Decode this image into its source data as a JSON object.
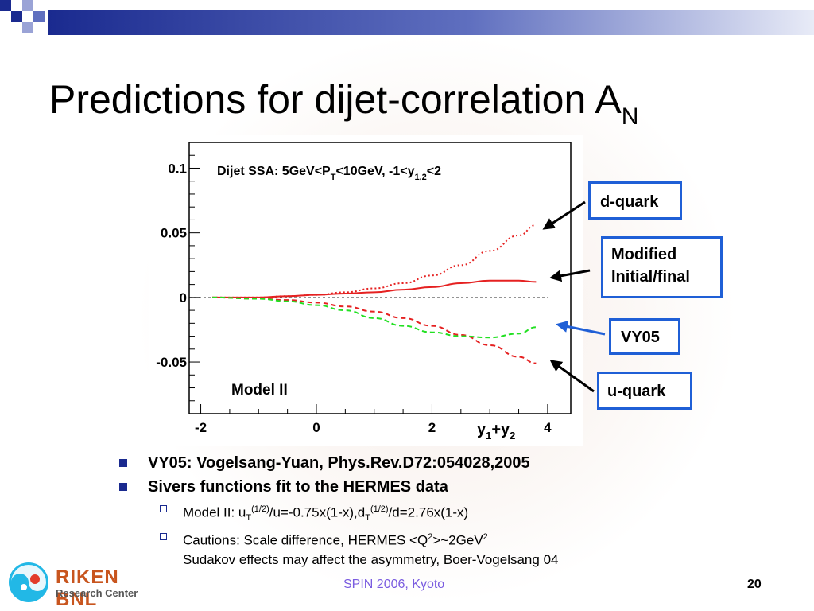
{
  "slide": {
    "title_main": "Predictions for dijet-correlation A",
    "title_sub": "N",
    "footer_center": "SPIN 2006, Kyoto",
    "page_number": "20",
    "logo": {
      "line1": "RIKEN BNL",
      "line2": "Research Center"
    }
  },
  "callouts": {
    "d_quark": "d-quark",
    "modified_line1": "Modified",
    "modified_line2": "Initial/final",
    "vy05": "VY05",
    "u_quark": "u-quark"
  },
  "bullets": [
    "VY05: Vogelsang-Yuan, Phys.Rev.D72:054028,2005",
    "Sivers functions fit to the HERMES data"
  ],
  "subbullets": {
    "model": {
      "prefix": "Model II: u",
      "sub1": "T",
      "sup1": "(1/2)",
      "middle": "/u=-0.75x(1-x),d",
      "sub2": "T",
      "sup2": "(1/2)",
      "suffix": "/d=2.76x(1-x)"
    },
    "cautions": {
      "prefix": "Cautions: Scale difference, HERMES <Q",
      "sup": "2",
      "middle": ">~2GeV",
      "sup2": "2",
      "line2": "Sudakov effects may affect the asymmetry, Boer-Vogelsang 04"
    }
  },
  "colors": {
    "accent": "#1a2a8f",
    "callout_border": "#1f5fd6",
    "red_curve": "#e52121",
    "green_curve": "#22e022",
    "footer_text": "#7a5ce0"
  },
  "chart_data": {
    "type": "line",
    "title_parts": [
      "Dijet SSA:  5GeV<P",
      "T",
      "<10GeV, -1<y",
      "1,2",
      "<2"
    ],
    "annotation": "Model II",
    "xlabel_parts": [
      "y",
      "1",
      "+y",
      "2"
    ],
    "ylabel": "",
    "xlim": [
      -2.2,
      4.4
    ],
    "ylim": [
      -0.09,
      0.12
    ],
    "x_ticks": [
      -2,
      0,
      2,
      4
    ],
    "y_ticks": [
      0.1,
      0.05,
      0,
      -0.05
    ],
    "x_tick_labels": [
      "-2",
      "0",
      "2",
      "4"
    ],
    "y_tick_labels": [
      "0.1",
      "0.05",
      "0",
      "-0.05"
    ],
    "series": [
      {
        "name": "d-quark",
        "color": "#e52121",
        "style": "dotted",
        "x": [
          -1.8,
          -1.0,
          -0.5,
          0.0,
          0.5,
          1.0,
          1.5,
          2.0,
          2.5,
          3.0,
          3.5,
          3.8
        ],
        "y": [
          0.0,
          0.0,
          0.001,
          0.002,
          0.004,
          0.007,
          0.011,
          0.017,
          0.025,
          0.036,
          0.048,
          0.056
        ]
      },
      {
        "name": "Modified Initial/final",
        "color": "#e52121",
        "style": "solid",
        "x": [
          -1.8,
          -1.0,
          -0.5,
          0.0,
          0.5,
          1.0,
          1.5,
          2.0,
          2.5,
          3.0,
          3.5,
          3.8
        ],
        "y": [
          0.0,
          0.0,
          0.001,
          0.002,
          0.003,
          0.004,
          0.006,
          0.008,
          0.011,
          0.013,
          0.013,
          0.012
        ]
      },
      {
        "name": "u-quark",
        "color": "#e52121",
        "style": "dashed",
        "x": [
          -1.8,
          -1.0,
          -0.5,
          0.0,
          0.5,
          1.0,
          1.5,
          2.0,
          2.5,
          3.0,
          3.5,
          3.8
        ],
        "y": [
          0.0,
          -0.001,
          -0.002,
          -0.004,
          -0.007,
          -0.011,
          -0.016,
          -0.022,
          -0.029,
          -0.037,
          -0.046,
          -0.051
        ]
      },
      {
        "name": "VY05",
        "color": "#22e022",
        "style": "dashed",
        "x": [
          -1.8,
          -1.0,
          -0.5,
          0.0,
          0.5,
          1.0,
          1.5,
          2.0,
          2.5,
          3.0,
          3.5,
          3.8
        ],
        "y": [
          0.0,
          -0.001,
          -0.003,
          -0.006,
          -0.01,
          -0.016,
          -0.022,
          -0.027,
          -0.03,
          -0.031,
          -0.028,
          -0.023
        ]
      }
    ]
  }
}
